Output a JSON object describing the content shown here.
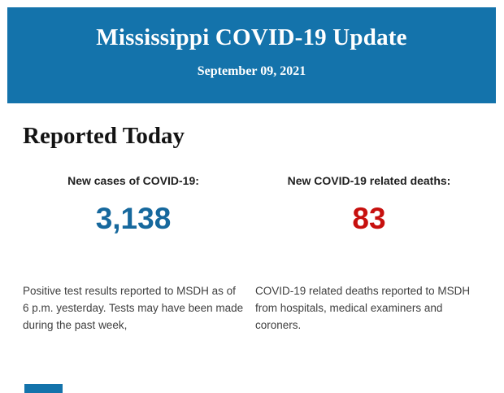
{
  "colors": {
    "header_bg": "#1473ab",
    "header_text": "#ffffff",
    "heading_text": "#131313",
    "body_text": "#3f3f3f",
    "cases_number": "#16689d",
    "deaths_number": "#c7100e"
  },
  "header": {
    "title": "Mississippi COVID-19 Update",
    "date": "September 09, 2021"
  },
  "main": {
    "section_title": "Reported Today",
    "cases": {
      "label": "New cases of COVID-19:",
      "value": "3,138",
      "description": "Positive test results reported to MSDH as of 6 p.m. yesterday. Tests may have been made during the past week,"
    },
    "deaths": {
      "label": "New COVID-19 related deaths:",
      "value": "83",
      "description": "COVID-19 related deaths reported to MSDH from hospitals, medical examiners and coroners."
    }
  }
}
